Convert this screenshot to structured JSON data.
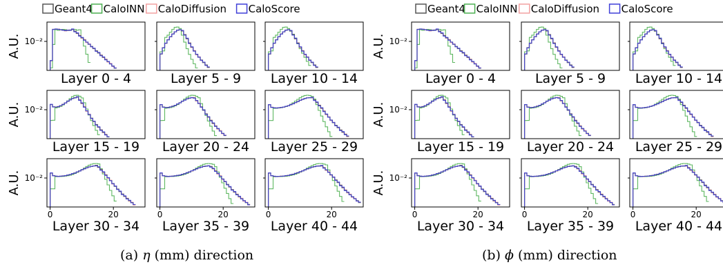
{
  "legend": {
    "entries": [
      {
        "name": "Geant4",
        "color": "#555555"
      },
      {
        "name": "CaloINN",
        "color": "#4caf50"
      },
      {
        "name": "CaloDiffusion",
        "color": "#f2a0a0"
      },
      {
        "name": "CaloScore",
        "color": "#3f3fd8"
      }
    ]
  },
  "figures": [
    {
      "caption_pre": "(a) ",
      "caption_sym": "η",
      "caption_post": " (mm) direction"
    },
    {
      "caption_pre": "(b) ",
      "caption_sym": "ϕ",
      "caption_post": " (mm) direction"
    }
  ],
  "chart_data": [
    {
      "type": "line",
      "group": "(a) η (mm) direction",
      "ylabel": "A.U.",
      "y_tick_label": "10⁻²",
      "y_tick_value": 0.01,
      "y_scale": "log",
      "x_tick_labels": [
        "0",
        "20"
      ],
      "x_tick_values": [
        0,
        20
      ],
      "xlim": [
        -1,
        30
      ],
      "panels": [
        {
          "label": "Layer 0 - 4",
          "row": 0,
          "col": 0,
          "peak": 4,
          "flat_top": true,
          "inn_peak": 6,
          "inn_dropoff": 9
        },
        {
          "label": "Layer 5 - 9",
          "row": 0,
          "col": 1,
          "peak": 6,
          "inn_peak": 5,
          "inn_dropoff": 10
        },
        {
          "label": "Layer 10 - 14",
          "row": 0,
          "col": 2,
          "peak": 6,
          "inn_peak": 5,
          "inn_dropoff": 12
        },
        {
          "label": "Layer 15 - 19",
          "row": 1,
          "col": 0,
          "peak": 8,
          "inn_peak": 8,
          "inn_dropoff": 14
        },
        {
          "label": "Layer 20 - 24",
          "row": 1,
          "col": 1,
          "peak": 10,
          "inn_peak": 10,
          "inn_dropoff": 16
        },
        {
          "label": "Layer 25 - 29",
          "row": 1,
          "col": 2,
          "peak": 13,
          "inn_peak": 12,
          "inn_dropoff": 18
        },
        {
          "label": "Layer 30 - 34",
          "row": 2,
          "col": 0,
          "peak": 14,
          "inn_peak": 14,
          "inn_dropoff": 19
        },
        {
          "label": "Layer 35 - 39",
          "row": 2,
          "col": 1,
          "peak": 15,
          "inn_peak": 15,
          "inn_dropoff": 21
        },
        {
          "label": "Layer 40 - 44",
          "row": 2,
          "col": 2,
          "peak": 16,
          "inn_peak": 16,
          "inn_dropoff": 22
        }
      ]
    },
    {
      "type": "line",
      "group": "(b) ϕ (mm) direction",
      "ylabel": "A.U.",
      "y_tick_label": "10⁻²",
      "y_tick_value": 0.01,
      "y_scale": "log",
      "x_tick_labels": [
        "0",
        "20"
      ],
      "x_tick_values": [
        0,
        20
      ],
      "xlim": [
        -1,
        30
      ],
      "panels": [
        {
          "label": "Layer 0 - 4",
          "row": 0,
          "col": 0,
          "peak": 4,
          "flat_top": true,
          "inn_peak": 6,
          "inn_dropoff": 9
        },
        {
          "label": "Layer 5 - 9",
          "row": 0,
          "col": 1,
          "peak": 6,
          "inn_peak": 5,
          "inn_dropoff": 10
        },
        {
          "label": "Layer 10 - 14",
          "row": 0,
          "col": 2,
          "peak": 6,
          "inn_peak": 5,
          "inn_dropoff": 12
        },
        {
          "label": "Layer 15 - 19",
          "row": 1,
          "col": 0,
          "peak": 8,
          "inn_peak": 8,
          "inn_dropoff": 14
        },
        {
          "label": "Layer 20 - 24",
          "row": 1,
          "col": 1,
          "peak": 10,
          "inn_peak": 10,
          "inn_dropoff": 16
        },
        {
          "label": "Layer 25 - 29",
          "row": 1,
          "col": 2,
          "peak": 13,
          "inn_peak": 12,
          "inn_dropoff": 18
        },
        {
          "label": "Layer 30 - 34",
          "row": 2,
          "col": 0,
          "peak": 14,
          "inn_peak": 14,
          "inn_dropoff": 19
        },
        {
          "label": "Layer 35 - 39",
          "row": 2,
          "col": 1,
          "peak": 15,
          "inn_peak": 15,
          "inn_dropoff": 21
        },
        {
          "label": "Layer 40 - 44",
          "row": 2,
          "col": 2,
          "peak": 16,
          "inn_peak": 16,
          "inn_dropoff": 22
        }
      ]
    }
  ]
}
